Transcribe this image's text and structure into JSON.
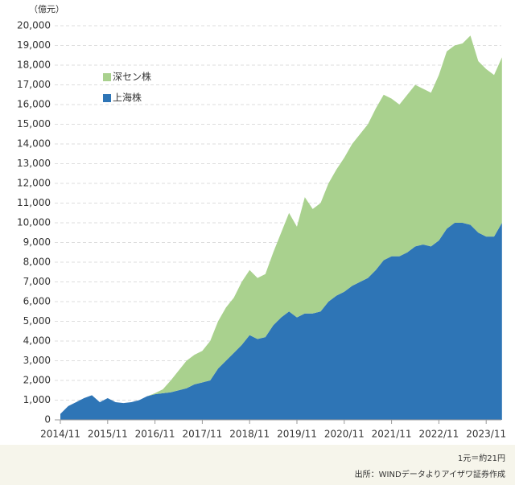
{
  "chart_data": {
    "type": "stacked_area",
    "y_unit": "（億元）",
    "x": [
      "2014/11",
      "2015/01",
      "2015/03",
      "2015/05",
      "2015/07",
      "2015/09",
      "2015/11",
      "2016/01",
      "2016/03",
      "2016/05",
      "2016/07",
      "2016/09",
      "2016/11",
      "2017/01",
      "2017/03",
      "2017/05",
      "2017/07",
      "2017/09",
      "2017/11",
      "2018/01",
      "2018/03",
      "2018/05",
      "2018/07",
      "2018/09",
      "2018/11",
      "2019/01",
      "2019/03",
      "2019/05",
      "2019/07",
      "2019/09",
      "2019/11",
      "2020/01",
      "2020/03",
      "2020/05",
      "2020/07",
      "2020/09",
      "2020/11",
      "2021/01",
      "2021/03",
      "2021/05",
      "2021/07",
      "2021/09",
      "2021/11",
      "2022/01",
      "2022/03",
      "2022/05",
      "2022/07",
      "2022/09",
      "2022/11",
      "2023/01",
      "2023/03",
      "2023/05",
      "2023/07",
      "2023/09",
      "2023/11",
      "2024/01",
      "2024/03"
    ],
    "series": [
      {
        "name": "上海株",
        "color": "#2e75b6",
        "values": [
          300,
          700,
          900,
          1100,
          1250,
          900,
          1100,
          900,
          850,
          900,
          1000,
          1200,
          1300,
          1350,
          1400,
          1500,
          1600,
          1800,
          1900,
          2000,
          2600,
          3000,
          3400,
          3800,
          4300,
          4100,
          4200,
          4800,
          5200,
          5500,
          5200,
          5400,
          5400,
          5500,
          6000,
          6300,
          6500,
          6800,
          7000,
          7200,
          7600,
          8100,
          8300,
          8300,
          8500,
          8800,
          8900,
          8800,
          9100,
          9700,
          10000,
          10000,
          9900,
          9500,
          9300,
          9300,
          10000
        ]
      },
      {
        "name": "深セン株",
        "color": "#a9d18e",
        "values": [
          0,
          0,
          0,
          0,
          0,
          0,
          0,
          0,
          0,
          0,
          0,
          0,
          50,
          200,
          600,
          1000,
          1400,
          1500,
          1600,
          2000,
          2400,
          2700,
          2800,
          3200,
          3300,
          3100,
          3200,
          3700,
          4300,
          5000,
          4600,
          5900,
          5300,
          5500,
          6000,
          6400,
          6800,
          7200,
          7500,
          7800,
          8200,
          8400,
          8000,
          7700,
          8000,
          8200,
          7900,
          7800,
          8400,
          9000,
          9000,
          9100,
          9600,
          8700,
          8500,
          8200,
          8400
        ]
      }
    ],
    "xticks": [
      "2014/11",
      "2015/11",
      "2016/11",
      "2017/11",
      "2018/11",
      "2019/11",
      "2020/11",
      "2021/11",
      "2022/11",
      "2023/11"
    ],
    "ylim": [
      0,
      20000
    ],
    "yticks": [
      0,
      {
        "value": 1000,
        "label": "1,000"
      },
      {
        "value": 2000,
        "label": "2,000"
      },
      {
        "value": 3000,
        "label": "3,000"
      },
      {
        "value": 4000,
        "label": "4,000"
      },
      {
        "value": 5000,
        "label": "5,000"
      },
      {
        "value": 6000,
        "label": "6,000"
      },
      {
        "value": 7000,
        "label": "7,000"
      },
      {
        "value": 8000,
        "label": "8,000"
      },
      {
        "value": 9000,
        "label": "9,000"
      },
      {
        "value": 10000,
        "label": "10,000"
      },
      {
        "value": 11000,
        "label": "11,000"
      },
      {
        "value": 12000,
        "label": "12,000"
      },
      {
        "value": 13000,
        "label": "13,000"
      },
      {
        "value": 14000,
        "label": "14,000"
      },
      {
        "value": 15000,
        "label": "15,000"
      },
      {
        "value": 16000,
        "label": "16,000"
      },
      {
        "value": 17000,
        "label": "17,000"
      },
      {
        "value": 18000,
        "label": "18,000"
      },
      {
        "value": 19000,
        "label": "19,000"
      },
      {
        "value": 20000,
        "label": "20,000"
      }
    ],
    "grid": true
  },
  "notes": {
    "rate": "1元＝約21円",
    "source": "出所：WINDデータよりアイザワ証券作成"
  }
}
